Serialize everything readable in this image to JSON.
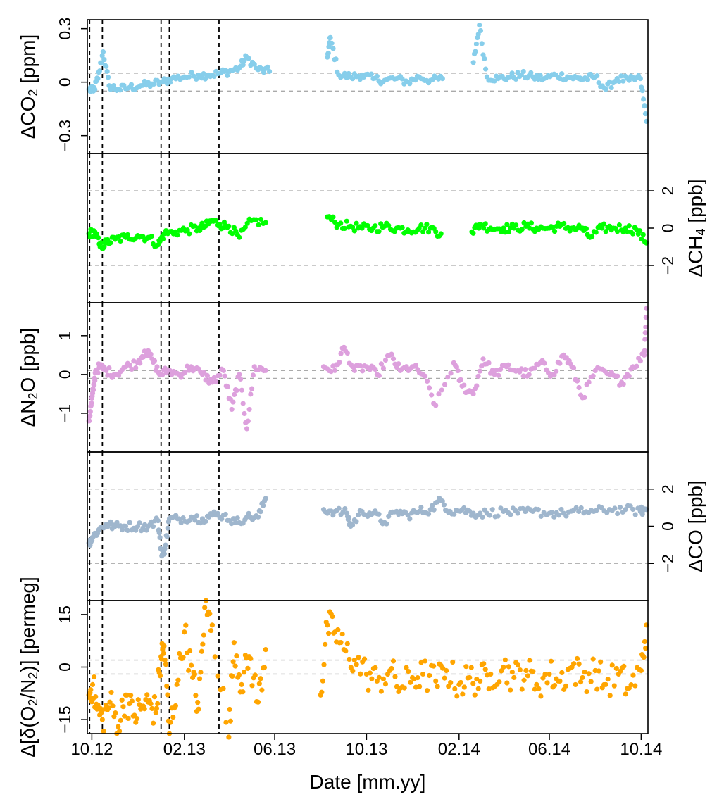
{
  "chart_data": [
    {
      "type": "scatter",
      "ylabel": "ΔCO₂ [ppm]",
      "ylabel_parts": [
        [
          "ΔCO",
          0
        ],
        [
          "2",
          1
        ],
        [
          " [ppm]",
          0
        ]
      ],
      "yaxis_side": "left",
      "ylim": [
        -0.4,
        0.35
      ],
      "yticks": [
        -0.3,
        0,
        0.3
      ],
      "ytick_labels": [
        "−0.3",
        "0",
        "0.3"
      ],
      "reference_lines": [
        -0.05,
        0.05
      ],
      "color": "#87CEEB",
      "series": [
        {
          "name": "",
          "x": [
            "2012-09-27",
            "2012-10-03",
            "2012-10-09",
            "2012-10-16",
            "2012-10-24",
            "2012-11-05",
            "2012-11-20",
            "2012-12-05",
            "2012-12-20",
            "2013-01-03",
            "2013-01-15",
            "2013-02-01",
            "2013-02-20",
            "2013-03-05",
            "2013-03-20",
            "2013-04-01",
            "2013-04-15",
            "2013-04-25",
            "2013-05-10",
            "2013-05-25",
            "2013-08-10",
            "2013-08-14",
            "2013-08-25",
            "2013-09-10",
            "2013-09-25",
            "2013-10-10",
            "2013-10-25",
            "2013-11-10",
            "2013-11-25",
            "2013-12-10",
            "2013-12-25",
            "2014-01-10",
            "2014-02-20",
            "2014-02-28",
            "2014-03-10",
            "2014-03-25",
            "2014-04-10",
            "2014-04-25",
            "2014-05-10",
            "2014-05-25",
            "2014-06-10",
            "2014-06-25",
            "2014-07-10",
            "2014-07-20",
            "2014-08-01",
            "2014-08-15",
            "2014-08-30",
            "2014-09-15",
            "2014-09-30",
            "2014-10-08"
          ],
          "y": [
            -0.04,
            -0.05,
            0.02,
            0.17,
            -0.02,
            -0.04,
            -0.03,
            -0.02,
            -0.01,
            0.0,
            0.02,
            0.03,
            0.04,
            0.04,
            0.05,
            0.06,
            0.08,
            0.14,
            0.07,
            0.06,
            0.14,
            0.25,
            0.04,
            0.03,
            0.04,
            0.02,
            0.01,
            0.02,
            0.0,
            0.03,
            0.01,
            0.02,
            0.11,
            0.32,
            0.03,
            0.02,
            0.03,
            0.04,
            0.03,
            0.02,
            0.04,
            0.03,
            0.02,
            0.02,
            0.03,
            -0.04,
            0.02,
            0.01,
            0.02,
            -0.22
          ]
        }
      ]
    },
    {
      "type": "scatter",
      "ylabel": "ΔCH₄ [ppb]",
      "ylabel_parts": [
        [
          "ΔCH",
          0
        ],
        [
          "4",
          1
        ],
        [
          " [ppb]",
          0
        ]
      ],
      "yaxis_side": "right",
      "ylim": [
        -4,
        4
      ],
      "yticks": [
        -2,
        0,
        2
      ],
      "ytick_labels": [
        "−2",
        "0",
        "2"
      ],
      "reference_lines": [
        -2,
        2
      ],
      "color": "#00FF00",
      "series": [
        {
          "name": "",
          "x": [
            "2012-09-27",
            "2012-10-05",
            "2012-10-12",
            "2012-10-20",
            "2012-11-01",
            "2012-11-15",
            "2012-12-01",
            "2012-12-15",
            "2012-12-28",
            "2013-01-05",
            "2013-01-20",
            "2013-02-05",
            "2013-02-20",
            "2013-03-01",
            "2013-03-10",
            "2013-03-20",
            "2013-04-01",
            "2013-04-15",
            "2013-05-01",
            "2013-05-20",
            "2013-08-10",
            "2013-08-25",
            "2013-09-10",
            "2013-09-25",
            "2013-10-10",
            "2013-10-25",
            "2013-11-10",
            "2013-11-25",
            "2013-12-10",
            "2013-12-25",
            "2014-01-08",
            "2014-02-18",
            "2014-03-01",
            "2014-03-15",
            "2014-04-01",
            "2014-04-15",
            "2014-05-01",
            "2014-05-15",
            "2014-06-01",
            "2014-06-15",
            "2014-07-01",
            "2014-07-15",
            "2014-07-25",
            "2014-08-10",
            "2014-08-25",
            "2014-09-10",
            "2014-09-25",
            "2014-10-08"
          ],
          "y": [
            -0.3,
            -0.2,
            -1.0,
            -0.8,
            -0.6,
            -0.5,
            -0.4,
            -0.5,
            -0.9,
            -0.3,
            -0.2,
            -0.1,
            0.0,
            0.1,
            0.4,
            0.2,
            0.1,
            -0.5,
            0.4,
            0.3,
            0.6,
            0.2,
            0.1,
            0.0,
            0.0,
            0.1,
            0.0,
            -0.1,
            0.0,
            0.0,
            -0.3,
            -0.2,
            0.2,
            0.0,
            0.0,
            0.0,
            0.1,
            0.0,
            0.0,
            0.1,
            0.0,
            0.0,
            -0.5,
            0.0,
            0.0,
            0.0,
            -0.1,
            -0.8
          ]
        }
      ]
    },
    {
      "type": "scatter",
      "ylabel": "ΔN₂O [ppb]",
      "ylabel_parts": [
        [
          "ΔN",
          0
        ],
        [
          "2",
          1
        ],
        [
          "O [ppb]",
          0
        ]
      ],
      "yaxis_side": "left",
      "ylim": [
        -2,
        1.85
      ],
      "yticks": [
        -1,
        0,
        1
      ],
      "ytick_labels": [
        "−1",
        "0",
        "1"
      ],
      "reference_lines": [
        -0.1,
        0.1
      ],
      "color": "#DDA0DD",
      "series": [
        {
          "name": "",
          "x": [
            "2012-09-27",
            "2012-09-30",
            "2012-10-03",
            "2012-10-06",
            "2012-10-12",
            "2012-10-20",
            "2012-11-01",
            "2012-11-15",
            "2012-12-01",
            "2012-12-10",
            "2012-12-20",
            "2012-12-30",
            "2013-01-10",
            "2013-01-25",
            "2013-02-10",
            "2013-02-25",
            "2013-03-10",
            "2013-03-25",
            "2013-04-05",
            "2013-04-15",
            "2013-04-25",
            "2013-05-05",
            "2013-05-20",
            "2013-08-05",
            "2013-08-20",
            "2013-09-01",
            "2013-09-15",
            "2013-10-01",
            "2013-10-15",
            "2013-11-01",
            "2013-11-15",
            "2013-12-01",
            "2013-12-15",
            "2014-01-01",
            "2014-01-25",
            "2014-02-05",
            "2014-02-20",
            "2014-03-05",
            "2014-03-20",
            "2014-04-05",
            "2014-04-20",
            "2014-05-05",
            "2014-05-20",
            "2014-06-05",
            "2014-06-20",
            "2014-07-01",
            "2014-07-15",
            "2014-08-01",
            "2014-08-20",
            "2014-09-05",
            "2014-09-20",
            "2014-10-05",
            "2014-10-08"
          ],
          "y": [
            -1.2,
            -0.8,
            -0.4,
            0.1,
            0.2,
            0.1,
            0.0,
            0.2,
            0.3,
            0.6,
            0.4,
            0.0,
            0.1,
            0.0,
            0.2,
            0.0,
            -0.2,
            0.1,
            -0.9,
            0.0,
            -1.4,
            0.2,
            0.1,
            0.2,
            0.1,
            0.7,
            0.1,
            0.2,
            0.0,
            0.5,
            0.1,
            0.2,
            0.0,
            -0.8,
            0.3,
            -0.3,
            -0.5,
            0.4,
            0.0,
            0.2,
            0.1,
            0.0,
            0.3,
            0.0,
            0.5,
            0.2,
            -0.6,
            0.1,
            0.0,
            -0.2,
            0.2,
            0.5,
            1.7
          ]
        }
      ]
    },
    {
      "type": "scatter",
      "ylabel": "ΔCO [ppb]",
      "ylabel_parts": [
        [
          "ΔCO [ppb]",
          0
        ]
      ],
      "yaxis_side": "right",
      "ylim": [
        -4,
        4
      ],
      "yticks": [
        -2,
        0,
        2
      ],
      "ytick_labels": [
        "−2",
        "0",
        "2"
      ],
      "reference_lines": [
        -2,
        2
      ],
      "color": "#9FB6CD",
      "series": [
        {
          "name": "",
          "x": [
            "2012-09-27",
            "2012-10-02",
            "2012-10-10",
            "2012-10-20",
            "2012-11-01",
            "2012-11-15",
            "2012-12-01",
            "2012-12-15",
            "2012-12-28",
            "2013-01-02",
            "2013-01-06",
            "2013-01-12",
            "2013-01-25",
            "2013-02-10",
            "2013-02-25",
            "2013-03-10",
            "2013-03-25",
            "2013-04-10",
            "2013-04-25",
            "2013-05-10",
            "2013-05-20",
            "2013-08-05",
            "2013-08-20",
            "2013-09-05",
            "2013-09-10",
            "2013-09-25",
            "2013-10-10",
            "2013-10-25",
            "2013-11-10",
            "2013-11-25",
            "2013-12-10",
            "2013-12-25",
            "2014-01-08",
            "2014-01-20",
            "2014-02-05",
            "2014-02-20",
            "2014-03-10",
            "2014-04-01",
            "2014-04-20",
            "2014-05-10",
            "2014-06-01",
            "2014-06-20",
            "2014-07-10",
            "2014-07-30",
            "2014-08-20",
            "2014-09-10",
            "2014-09-30",
            "2014-10-08"
          ],
          "y": [
            -0.9,
            -0.6,
            -0.2,
            0.1,
            0.0,
            0.0,
            0.0,
            0.0,
            0.3,
            -1.6,
            -1.2,
            0.4,
            0.4,
            0.5,
            0.4,
            0.6,
            0.6,
            0.2,
            0.5,
            0.5,
            1.5,
            0.9,
            0.8,
            0.7,
            0.0,
            0.8,
            0.7,
            0.2,
            0.8,
            0.6,
            0.8,
            0.9,
            1.4,
            0.8,
            0.9,
            0.7,
            0.7,
            0.8,
            0.7,
            0.8,
            0.7,
            0.7,
            0.8,
            0.8,
            0.9,
            0.9,
            0.8,
            0.9
          ]
        }
      ]
    },
    {
      "type": "scatter",
      "ylabel": "Δ[δ(O₂/N₂)] [permeg]",
      "ylabel_parts": [
        [
          "Δ[δ(O",
          0
        ],
        [
          "2",
          1
        ],
        [
          "/N",
          0
        ],
        [
          "2",
          1
        ],
        [
          ")] [permeg]",
          0
        ]
      ],
      "yaxis_side": "left",
      "ylim": [
        -19,
        19
      ],
      "yticks": [
        -15,
        0,
        15
      ],
      "ytick_labels": [
        "−15",
        "0",
        "15"
      ],
      "reference_lines": [
        -2,
        2
      ],
      "color": "#FFA500",
      "series": [
        {
          "name": "",
          "x": [
            "2012-09-27",
            "2012-10-02",
            "2012-10-08",
            "2012-10-15",
            "2012-10-25",
            "2012-11-05",
            "2012-11-15",
            "2012-11-25",
            "2012-12-05",
            "2012-12-15",
            "2012-12-25",
            "2013-01-01",
            "2013-01-05",
            "2013-01-12",
            "2013-01-22",
            "2013-02-01",
            "2013-02-12",
            "2013-02-20",
            "2013-02-28",
            "2013-03-10",
            "2013-04-01",
            "2013-04-08",
            "2013-04-18",
            "2013-04-28",
            "2013-05-10",
            "2013-05-20",
            "2013-08-01",
            "2013-08-10",
            "2013-08-20",
            "2013-09-01",
            "2013-09-15",
            "2013-10-01",
            "2013-10-15",
            "2013-11-01",
            "2013-11-15",
            "2013-12-01",
            "2013-12-15",
            "2014-01-01",
            "2014-01-15",
            "2014-02-01",
            "2014-02-15",
            "2014-03-01",
            "2014-03-15",
            "2014-04-01",
            "2014-04-15",
            "2014-05-01",
            "2014-05-15",
            "2014-06-01",
            "2014-06-15",
            "2014-07-01",
            "2014-07-15",
            "2014-08-01",
            "2014-08-15",
            "2014-09-01",
            "2014-09-15",
            "2014-10-01",
            "2014-10-08"
          ],
          "y": [
            -8,
            -5,
            -12,
            -15,
            -10,
            -17,
            -8,
            -14,
            -12,
            -10,
            -13,
            3,
            6,
            -19,
            -5,
            10,
            -3,
            -12,
            17,
            12,
            -20,
            7,
            -5,
            3,
            -10,
            5,
            -8,
            12,
            10,
            5,
            2,
            -2,
            -4,
            -1,
            -6,
            -3,
            -2,
            -4,
            -1,
            -5,
            -3,
            -4,
            -2,
            0,
            -3,
            -1,
            -5,
            -2,
            -4,
            0,
            -3,
            -1,
            -5,
            -2,
            -6,
            -1,
            12
          ]
        }
      ]
    }
  ],
  "shared_x": {
    "label": "Date [mm.yy]",
    "range": [
      "2012-09-25",
      "2014-10-10"
    ],
    "ticks": [
      "2012-10-01",
      "2013-02-01",
      "2013-06-01",
      "2013-10-01",
      "2014-02-01",
      "2014-06-01",
      "2014-10-01"
    ],
    "tick_labels": [
      "10.12",
      "02.13",
      "06.13",
      "10.13",
      "02.14",
      "06.14",
      "10.14"
    ]
  },
  "event_lines": [
    "2012-09-28",
    "2012-10-15",
    "2013-01-01",
    "2013-01-12",
    "2013-03-19"
  ],
  "reference_line_color": "#AAAAAA"
}
